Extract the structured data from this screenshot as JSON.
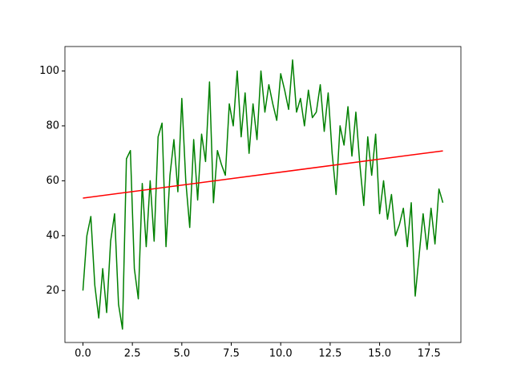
{
  "chart_data": {
    "type": "line",
    "series": [
      {
        "color": "#008000",
        "x": [
          0,
          0.2,
          0.4,
          0.6,
          0.8,
          1.0,
          1.2,
          1.4,
          1.6,
          1.8,
          2.0,
          2.2,
          2.4,
          2.6,
          2.8,
          3.0,
          3.2,
          3.4,
          3.6,
          3.8,
          4.0,
          4.2,
          4.4,
          4.6,
          4.8,
          5.0,
          5.2,
          5.4,
          5.6,
          5.8,
          6.0,
          6.2,
          6.4,
          6.6,
          6.8,
          7.0,
          7.2,
          7.4,
          7.6,
          7.8,
          8.0,
          8.2,
          8.4,
          8.6,
          8.8,
          9.0,
          9.2,
          9.4,
          9.6,
          9.8,
          10.0,
          10.2,
          10.4,
          10.6,
          10.8,
          11.0,
          11.2,
          11.4,
          11.6,
          11.8,
          12.0,
          12.2,
          12.4,
          12.6,
          12.8,
          13.0,
          13.2,
          13.4,
          13.6,
          13.8,
          14.0,
          14.2,
          14.4,
          14.6,
          14.8,
          15.0,
          15.2,
          15.4,
          15.6,
          15.8,
          16.0,
          16.2,
          16.4,
          16.6,
          16.8,
          17.0,
          17.2,
          17.4,
          17.6,
          17.8,
          18.0,
          18.2
        ],
        "values": [
          20,
          40,
          47,
          22,
          10,
          28,
          12,
          38,
          48,
          15,
          6,
          68,
          71,
          28,
          17,
          59,
          36,
          60,
          38,
          76,
          81,
          36,
          62,
          75,
          56,
          90,
          60,
          43,
          75,
          53,
          77,
          67,
          96,
          52,
          71,
          66,
          62,
          88,
          80,
          100,
          76,
          92,
          70,
          88,
          75,
          100,
          85,
          95,
          88,
          82,
          99,
          93,
          86,
          104,
          85,
          90,
          80,
          93,
          83,
          85,
          95,
          78,
          92,
          70,
          55,
          80,
          73,
          87,
          69,
          85,
          66,
          51,
          76,
          62,
          77,
          48,
          60,
          46,
          55,
          40,
          44,
          50,
          36,
          52,
          18,
          33,
          48,
          35,
          50,
          37,
          57,
          52
        ]
      },
      {
        "color": "#ff0000",
        "x": [
          0,
          18.2
        ],
        "values": [
          53.7,
          70.9
        ]
      }
    ],
    "xlim": [
      -0.91,
      19.11
    ],
    "ylim": [
      1.1,
      108.9
    ],
    "xticks": [
      {
        "value": 0,
        "label": "0.0"
      },
      2.5,
      {
        "value": 5,
        "label": "5.0"
      },
      7.5,
      {
        "value": 10,
        "label": "10.0"
      },
      12.5,
      {
        "value": 15,
        "label": "15.0"
      },
      17.5
    ],
    "yticks": [
      20,
      40,
      60,
      80,
      100
    ]
  }
}
